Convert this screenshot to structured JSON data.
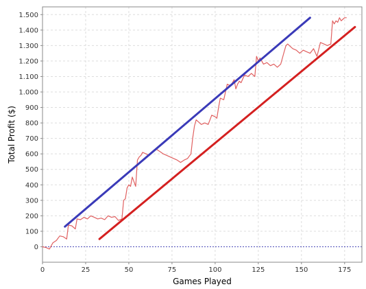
{
  "chart_data": {
    "type": "line",
    "title": "",
    "xlabel": "Games Played",
    "ylabel": "Total Profit ($)",
    "xlim": [
      0,
      185
    ],
    "ylim": [
      -100,
      1550
    ],
    "x_ticks": [
      0,
      25,
      50,
      75,
      100,
      125,
      150,
      175
    ],
    "x_tick_labels": [
      "0",
      "25",
      "50",
      "75",
      "100",
      "125",
      "150",
      "175"
    ],
    "y_ticks": [
      0,
      100,
      200,
      300,
      400,
      500,
      600,
      700,
      800,
      900,
      1000,
      1100,
      1200,
      1300,
      1400,
      1500
    ],
    "y_tick_labels": [
      "0",
      "100",
      "200",
      "300",
      "400",
      "500",
      "600",
      "700",
      "800",
      "900",
      "1.000",
      "1.100",
      "1.200",
      "1.300",
      "1.400",
      "1.500"
    ],
    "grid": true,
    "legend": "none",
    "colors": {
      "profit": "#e06060",
      "upper": "#3a3ab8",
      "lower": "#d42020",
      "zero_line": "#4a4ab8",
      "grid": "#dddddd",
      "frame": "#888888"
    },
    "series": [
      {
        "key": "profit",
        "x": [
          0,
          2,
          4,
          6,
          8,
          10,
          12,
          14,
          15,
          17,
          19,
          20,
          22,
          24,
          26,
          28,
          30,
          32,
          34,
          36,
          38,
          40,
          42,
          44,
          46,
          47,
          48,
          49,
          50,
          51,
          52,
          53,
          54,
          55,
          56,
          57,
          58,
          60,
          62,
          64,
          66,
          68,
          70,
          72,
          74,
          76,
          78,
          80,
          82,
          84,
          86,
          87,
          88,
          89,
          90,
          92,
          94,
          96,
          98,
          100,
          101,
          102,
          103,
          105,
          107,
          109,
          110,
          111,
          112,
          113,
          114,
          115,
          117,
          119,
          121,
          123,
          124,
          125,
          126,
          127,
          128,
          130,
          132,
          134,
          136,
          138,
          140,
          141,
          142,
          143,
          145,
          147,
          149,
          151,
          153,
          155,
          157,
          159,
          161,
          163,
          165,
          167,
          168,
          169,
          170,
          171,
          172,
          173,
          174,
          175,
          176
        ],
        "y": [
          0,
          -5,
          -15,
          25,
          40,
          70,
          65,
          50,
          140,
          135,
          115,
          180,
          175,
          190,
          180,
          200,
          190,
          180,
          185,
          175,
          200,
          190,
          195,
          170,
          180,
          300,
          310,
          380,
          400,
          390,
          450,
          420,
          390,
          560,
          580,
          590,
          610,
          600,
          590,
          620,
          630,
          615,
          600,
          590,
          580,
          570,
          560,
          545,
          560,
          570,
          600,
          700,
          780,
          820,
          810,
          790,
          800,
          790,
          850,
          840,
          830,
          900,
          960,
          950,
          1050,
          1040,
          1060,
          1080,
          1020,
          1050,
          1070,
          1060,
          1110,
          1100,
          1120,
          1100,
          1230,
          1200,
          1220,
          1200,
          1180,
          1190,
          1170,
          1180,
          1160,
          1180,
          1260,
          1300,
          1310,
          1300,
          1280,
          1270,
          1250,
          1270,
          1260,
          1250,
          1280,
          1230,
          1320,
          1310,
          1300,
          1310,
          1460,
          1440,
          1460,
          1450,
          1480,
          1460,
          1470,
          1480,
          1480
        ]
      },
      {
        "key": "upper",
        "x": [
          13,
          155
        ],
        "y": [
          130,
          1480
        ]
      },
      {
        "key": "lower",
        "x": [
          33,
          181
        ],
        "y": [
          50,
          1420
        ]
      }
    ]
  }
}
